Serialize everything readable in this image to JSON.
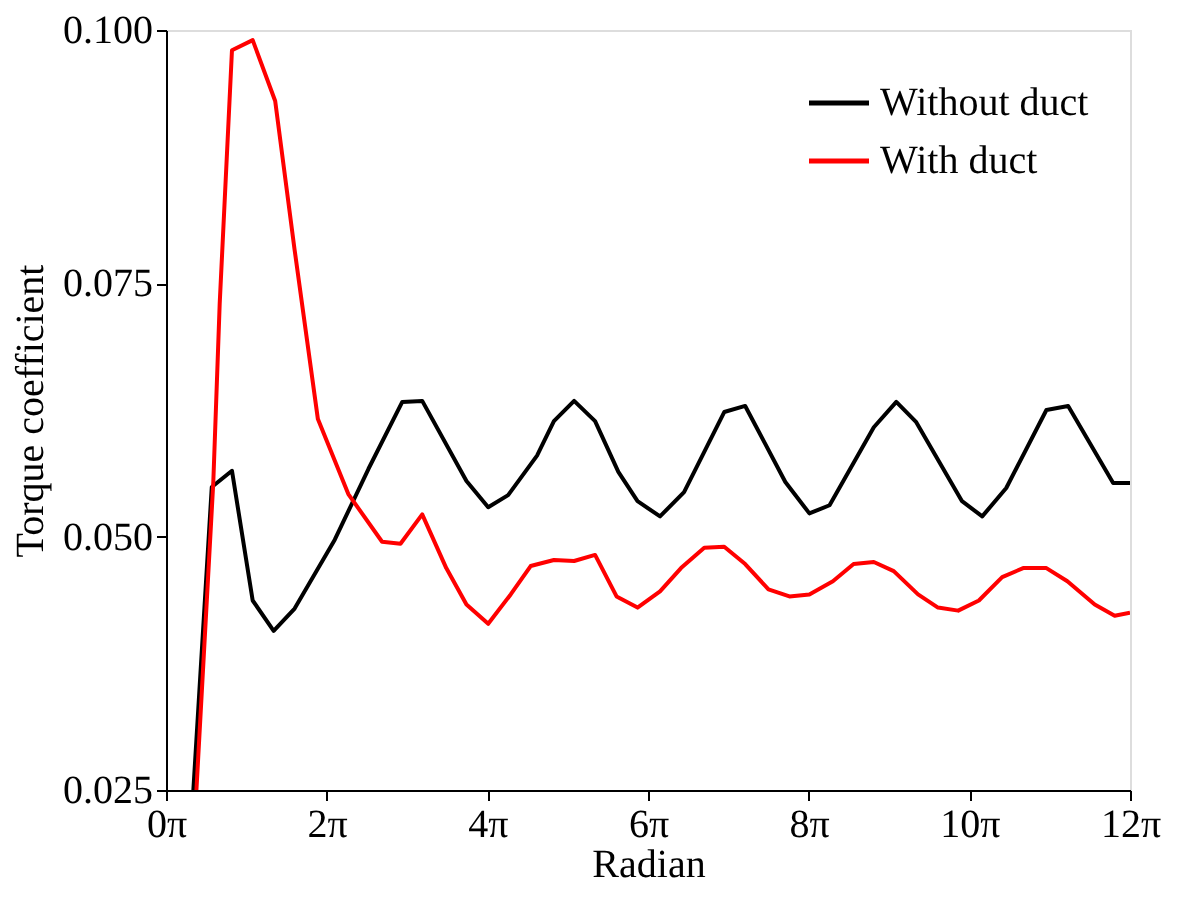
{
  "chart_data": {
    "type": "line",
    "xlabel": "Radian",
    "ylabel": "Torque coefficient",
    "xlim": [
      0,
      37.699
    ],
    "ylim": [
      0.025,
      0.1
    ],
    "xticks": [
      {
        "value": 0,
        "label": "0π"
      },
      {
        "value": 6.283,
        "label": "2π"
      },
      {
        "value": 12.566,
        "label": "4π"
      },
      {
        "value": 18.85,
        "label": "6π"
      },
      {
        "value": 25.133,
        "label": "8π"
      },
      {
        "value": 31.416,
        "label": "10π"
      },
      {
        "value": 37.699,
        "label": "12π"
      }
    ],
    "yticks": [
      {
        "value": 0.025,
        "label": "0.025"
      },
      {
        "value": 0.05,
        "label": "0.050"
      },
      {
        "value": 0.075,
        "label": "0.075"
      },
      {
        "value": 0.1,
        "label": "0.100"
      }
    ],
    "grid": false,
    "legend": "top right",
    "series": [
      {
        "name": "Without duct",
        "color": "#000000",
        "x": [
          1.07,
          1.79,
          2.58,
          3.39,
          4.21,
          5.03,
          6.6,
          7.92,
          9.24,
          10.02,
          11.75,
          12.6,
          13.38,
          14.51,
          15.17,
          15.96,
          16.78,
          17.69,
          18.44,
          19.32,
          20.26,
          21.83,
          22.65,
          24.22,
          25.16,
          25.95,
          27.68,
          28.56,
          29.34,
          31.13,
          31.92,
          32.86,
          34.43,
          35.28,
          37.04,
          37.699
        ],
        "values": [
          0.025,
          0.0549,
          0.0565,
          0.0437,
          0.0407,
          0.0429,
          0.0497,
          0.0567,
          0.0633,
          0.0634,
          0.0555,
          0.0529,
          0.0541,
          0.058,
          0.0614,
          0.0634,
          0.0614,
          0.0564,
          0.0535,
          0.052,
          0.0544,
          0.0623,
          0.0629,
          0.0554,
          0.0523,
          0.0531,
          0.0608,
          0.0633,
          0.0613,
          0.0535,
          0.052,
          0.0548,
          0.0625,
          0.0629,
          0.0553,
          0.0553
        ]
      },
      {
        "name": "With duct",
        "color": "#ff0000",
        "x": [
          1.19,
          1.85,
          2.1,
          2.58,
          3.39,
          4.27,
          5.03,
          5.94,
          7.13,
          8.45,
          9.17,
          10.02,
          10.96,
          11.75,
          12.6,
          13.48,
          14.26,
          15.17,
          15.96,
          16.78,
          17.62,
          18.44,
          19.32,
          20.14,
          21.05,
          21.83,
          22.65,
          23.56,
          24.38,
          25.16,
          26.08,
          26.89,
          27.68,
          28.46,
          29.41,
          30.19,
          30.98,
          31.79,
          32.7,
          33.52,
          34.43,
          35.25,
          36.32,
          37.1,
          37.699
        ],
        "values": [
          0.025,
          0.0554,
          0.073,
          0.098,
          0.099,
          0.093,
          0.0783,
          0.0616,
          0.0542,
          0.0495,
          0.0493,
          0.0522,
          0.0469,
          0.0433,
          0.0414,
          0.0443,
          0.0471,
          0.0477,
          0.0476,
          0.0482,
          0.0441,
          0.043,
          0.0446,
          0.0469,
          0.0489,
          0.049,
          0.0473,
          0.0448,
          0.0441,
          0.0443,
          0.0456,
          0.0473,
          0.0475,
          0.0466,
          0.0443,
          0.043,
          0.0427,
          0.0437,
          0.046,
          0.0469,
          0.0469,
          0.0456,
          0.0433,
          0.0422,
          0.0425
        ]
      }
    ]
  }
}
